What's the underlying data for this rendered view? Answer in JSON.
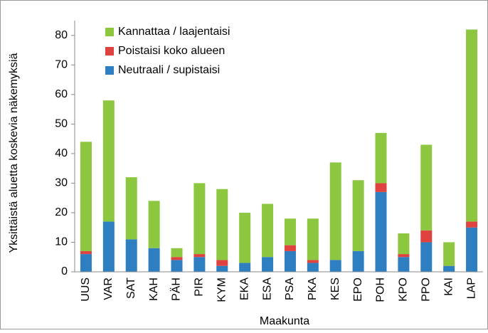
{
  "chart_data": {
    "type": "stacked_bar",
    "x_label": "Maakunta",
    "y_label": "Yksittäistä aluetta koskevia näkemyksiä",
    "categories": [
      "UUS",
      "VAR",
      "SAT",
      "KAH",
      "PÄH",
      "PIR",
      "KYM",
      "EKA",
      "ESA",
      "PSA",
      "PKA",
      "KES",
      "EPO",
      "POH",
      "KPO",
      "PPO",
      "KAI",
      "LAP"
    ],
    "series": [
      {
        "name": "Neutraali / supistaisi",
        "color": "#2e7ec2",
        "values": [
          6,
          17,
          11,
          8,
          4,
          5,
          2,
          3,
          5,
          7,
          3,
          4,
          7,
          27,
          5,
          10,
          2,
          15
        ]
      },
      {
        "name": "Poistaisi koko alueen",
        "color": "#e0433f",
        "values": [
          1,
          0,
          0,
          0,
          1,
          1,
          2,
          0,
          0,
          2,
          1,
          0,
          0,
          3,
          1,
          4,
          0,
          2
        ]
      },
      {
        "name": "Kannattaa / laajentaisi",
        "color": "#8dc63f",
        "values": [
          37,
          41,
          21,
          16,
          3,
          24,
          24,
          17,
          18,
          9,
          14,
          33,
          24,
          17,
          7,
          29,
          8,
          65
        ]
      }
    ],
    "ylim": [
      0,
      85
    ],
    "yticks": [
      0,
      10,
      20,
      30,
      40,
      50,
      60,
      70,
      80
    ],
    "grid": false,
    "legend": "top-left"
  }
}
